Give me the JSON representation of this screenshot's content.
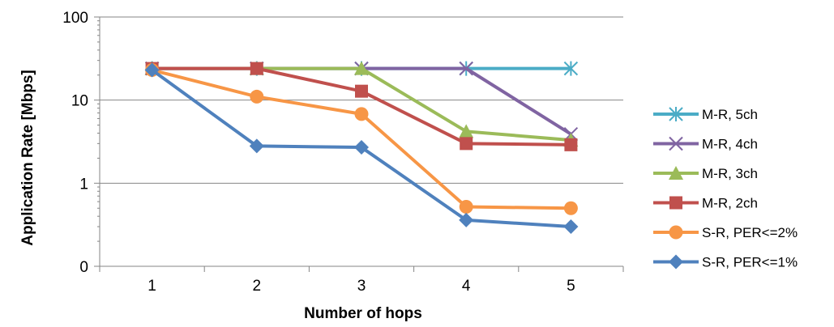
{
  "chart_data": {
    "type": "line",
    "title": "",
    "xlabel": "Number of hops",
    "ylabel": "Application Rate [Mbps]",
    "y_scale": "log",
    "ylim": [
      0.1,
      100
    ],
    "y_tick_values": [
      0.1,
      1,
      10,
      100
    ],
    "y_tick_labels": [
      "0",
      "1",
      "10",
      "100"
    ],
    "categories": [
      "1",
      "2",
      "3",
      "4",
      "5"
    ],
    "grid": "horizontal major gridlines",
    "legend_position": "right",
    "series": [
      {
        "name": "M-R, 5ch",
        "color": "#4bacc6",
        "marker": "asterisk",
        "values": [
          24,
          24,
          24,
          24,
          24
        ]
      },
      {
        "name": "M-R, 4ch",
        "color": "#8064a2",
        "marker": "x",
        "values": [
          24,
          24,
          24,
          24,
          3.9
        ]
      },
      {
        "name": "M-R, 3ch",
        "color": "#9bbb59",
        "marker": "triangle",
        "values": [
          24,
          24,
          24,
          4.2,
          3.3
        ]
      },
      {
        "name": "M-R, 2ch",
        "color": "#c0504d",
        "marker": "square",
        "values": [
          24,
          24,
          12.8,
          3.0,
          2.9
        ]
      },
      {
        "name": "S-R, PER<=2%",
        "color": "#f79646",
        "marker": "circle",
        "values": [
          23,
          11,
          6.8,
          0.52,
          0.5
        ]
      },
      {
        "name": "S-R, PER<=1%",
        "color": "#4f81bd",
        "marker": "diamond",
        "values": [
          23,
          2.8,
          2.7,
          0.36,
          0.3
        ]
      }
    ]
  }
}
